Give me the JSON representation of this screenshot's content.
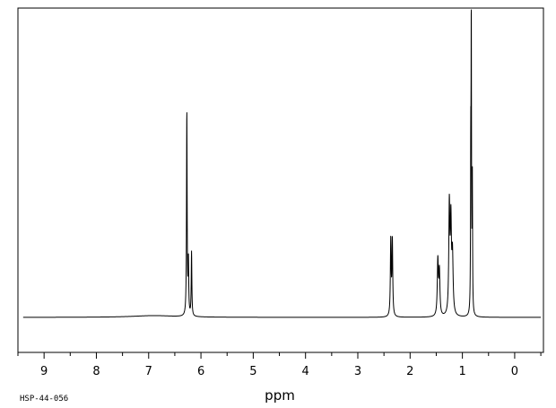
{
  "chart_data": {
    "type": "line",
    "title": "",
    "xlabel": "ppm",
    "ylabel": "",
    "xlim": [
      9.5,
      -0.55
    ],
    "x_reversed": true,
    "ylim": [
      -0.12,
      1.06
    ],
    "x_ticks": [
      "9",
      "8",
      "7",
      "6",
      "5",
      "4",
      "3",
      "2",
      "1",
      "0"
    ],
    "grid": false,
    "baseline": 0,
    "peaks": [
      {
        "ppm": 6.27,
        "height": 0.7,
        "width": 0.007
      },
      {
        "ppm": 6.24,
        "height": 0.18,
        "width": 0.007
      },
      {
        "ppm": 6.18,
        "height": 0.22,
        "width": 0.007
      },
      {
        "ppm": 2.37,
        "height": 0.26,
        "width": 0.009
      },
      {
        "ppm": 2.34,
        "height": 0.26,
        "width": 0.009
      },
      {
        "ppm": 1.47,
        "height": 0.19,
        "width": 0.012
      },
      {
        "ppm": 1.44,
        "height": 0.15,
        "width": 0.012
      },
      {
        "ppm": 1.25,
        "height": 0.37,
        "width": 0.012
      },
      {
        "ppm": 1.22,
        "height": 0.3,
        "width": 0.012
      },
      {
        "ppm": 1.19,
        "height": 0.2,
        "width": 0.014
      },
      {
        "ppm": 0.84,
        "height": 0.5,
        "width": 0.005
      },
      {
        "ppm": 0.83,
        "height": 0.97,
        "width": 0.005
      },
      {
        "ppm": 0.81,
        "height": 0.46,
        "width": 0.005
      }
    ],
    "broad_features": [
      {
        "ppm": 6.9,
        "height": 0.006,
        "width": 0.5
      }
    ]
  },
  "code_label": "HSP-44-056"
}
